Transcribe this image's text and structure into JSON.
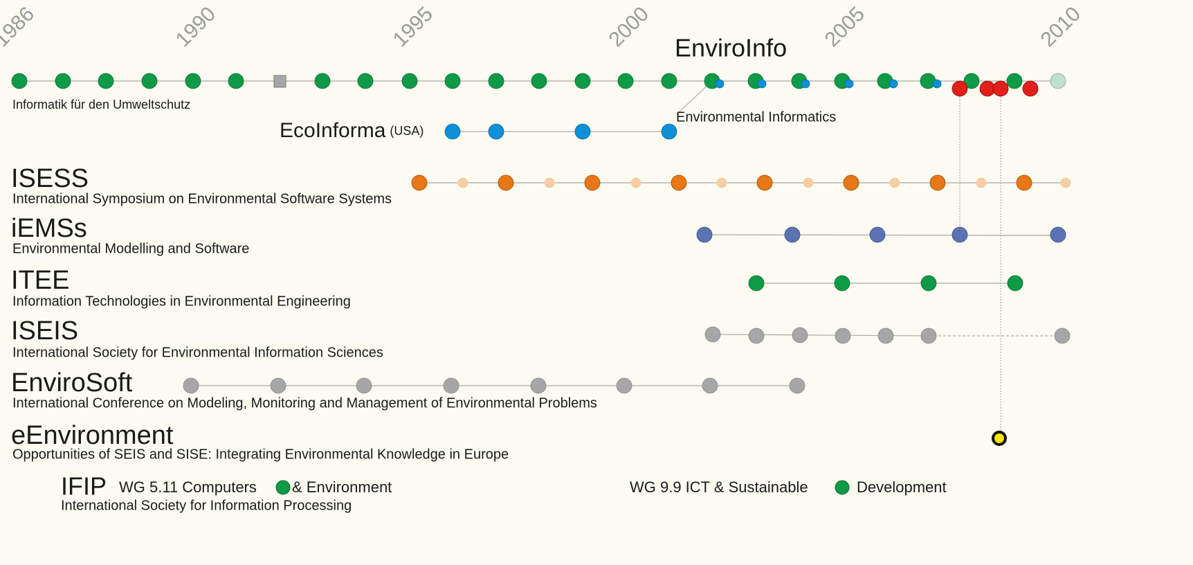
{
  "years": [
    "1986",
    "1990",
    "1995",
    "2000",
    "2005",
    "2010"
  ],
  "enviroinfo": {
    "title": "EnviroInfo",
    "subtitle": "Informatik für den Umweltschutz",
    "branch": "Environmental Informatics"
  },
  "ecoinforma": {
    "title": "EcoInforma",
    "note": "(USA)"
  },
  "tracks": [
    {
      "title": "ISESS",
      "subtitle": "International Symposium on Environmental Software Systems"
    },
    {
      "title": "iEMSs",
      "subtitle": "Environmental Modelling and Software"
    },
    {
      "title": "ITEE",
      "subtitle": "Information Technologies in Environmental Engineering"
    },
    {
      "title": "ISEIS",
      "subtitle": "International Society for Environmental Information Sciences"
    },
    {
      "title": "EnviroSoft",
      "subtitle": "International Conference on Modeling, Monitoring and Management of Environmental Problems"
    },
    {
      "title": "eEnvironment",
      "subtitle": "Opportunities of SEIS and SISE: Integrating Environmental Knowledge in Europe"
    }
  ],
  "ifip": {
    "title": "IFIP",
    "subtitle": "International Society for Information Processing",
    "wg1_a": "WG 5.11 Computers",
    "wg1_b": "& Environment",
    "wg2_a": "WG 9.9 ICT & Sustainable",
    "wg2_b": "Development"
  }
}
